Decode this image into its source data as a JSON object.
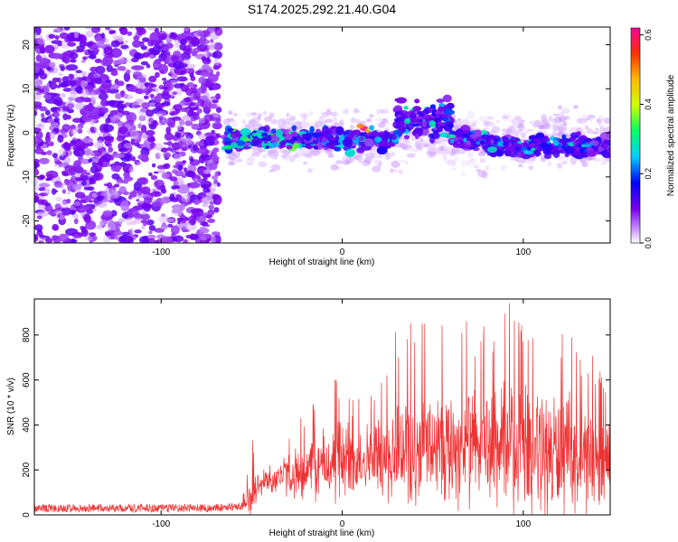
{
  "title": "S174.2025.292.21.40.G04",
  "chart_data": [
    {
      "type": "heatmap",
      "title": "",
      "xlabel": "Height of straight line (km)",
      "ylabel": "Frequency (Hz)",
      "xlim": [
        -170,
        148
      ],
      "ylim": [
        -25,
        24
      ],
      "xticks": [
        -100,
        0,
        100
      ],
      "yticks": [
        -20,
        -10,
        0,
        10,
        20
      ],
      "colorbar": {
        "label": "Normalized spectral amplitude",
        "range": [
          0.0,
          0.62
        ],
        "ticks": [
          0.0,
          0.2,
          0.4,
          0.6
        ],
        "tick_labels": [
          "0.0",
          "0.2",
          "0.4",
          "0.6"
        ]
      },
      "regions": [
        {
          "x": [
            -170,
            -68
          ],
          "freq": [
            -25,
            24
          ],
          "amplitude": 0.08
        },
        {
          "x": [
            -65,
            150
          ],
          "freq": [
            -9,
            6
          ],
          "amplitude": 0.2
        },
        {
          "x": [
            30,
            60
          ],
          "freq": [
            -6,
            16
          ],
          "amplitude": 0.15
        },
        {
          "x": [
            10,
            14
          ],
          "freq": [
            0,
            2
          ],
          "amplitude": 0.6
        }
      ]
    },
    {
      "type": "line",
      "title": "",
      "xlabel": "Height of straight line (km)",
      "ylabel": "SNR (10 * v/v)",
      "xlim": [
        -170,
        148
      ],
      "ylim": [
        0,
        960
      ],
      "xticks": [
        -100,
        0,
        100
      ],
      "yticks": [
        0,
        200,
        400,
        600,
        800
      ],
      "color": "#ee3333",
      "series": [
        {
          "x": [
            -170,
            -150,
            -130,
            -110,
            -90,
            -70,
            -55,
            -50,
            -45,
            -40,
            -30,
            -20,
            -10,
            0,
            10,
            20,
            30,
            40,
            50,
            60,
            70,
            80,
            90,
            100,
            110,
            120,
            130,
            140,
            148
          ],
          "y_mean": [
            30,
            30,
            30,
            30,
            30,
            30,
            40,
            90,
            140,
            160,
            180,
            200,
            220,
            240,
            250,
            270,
            290,
            300,
            300,
            310,
            300,
            300,
            290,
            290,
            280,
            270,
            260,
            250,
            240
          ],
          "y_peak": [
            55,
            55,
            55,
            55,
            50,
            45,
            80,
            345,
            260,
            300,
            380,
            460,
            560,
            640,
            580,
            600,
            860,
            860,
            850,
            880,
            870,
            860,
            960,
            880,
            880,
            860,
            760,
            700,
            600
          ]
        }
      ]
    }
  ]
}
